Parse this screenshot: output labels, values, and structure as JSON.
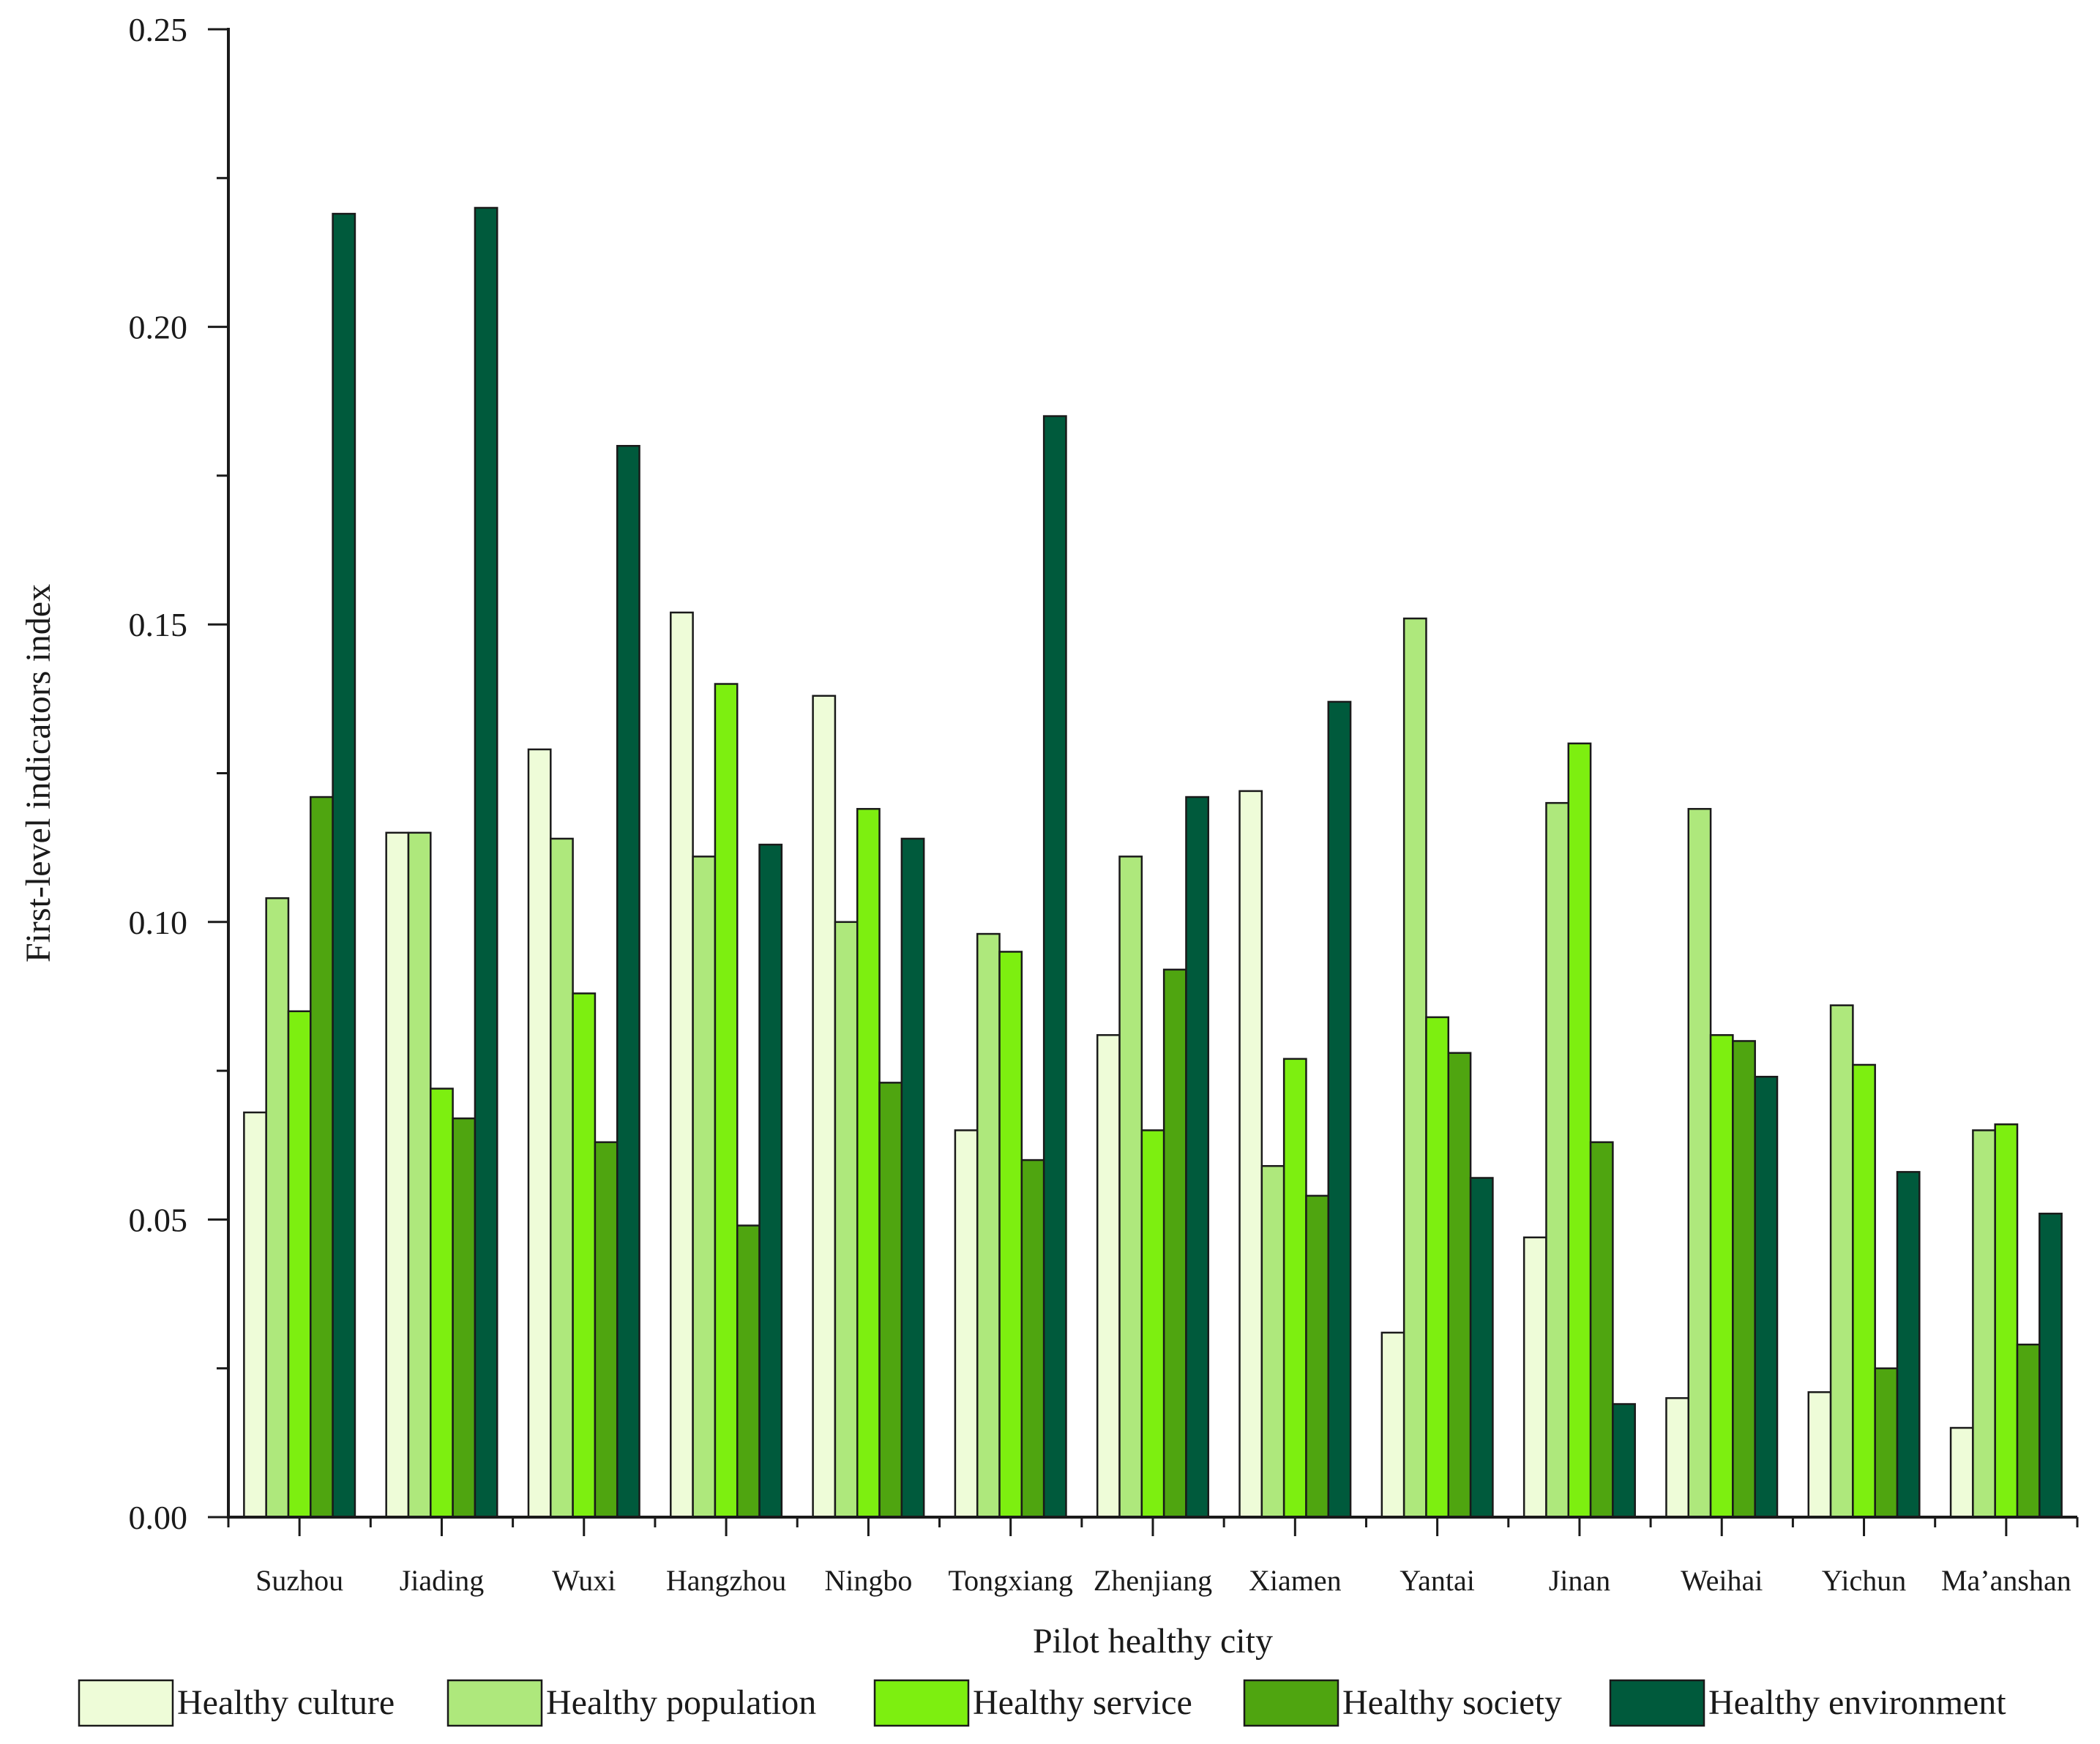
{
  "chart_data": {
    "type": "bar",
    "title": "",
    "xlabel": "Pilot healthy city",
    "ylabel": "First-level indicators index",
    "ylim": [
      0,
      0.25
    ],
    "yticks": [
      "0.00",
      "0.05",
      "0.10",
      "0.15",
      "0.20",
      "0.25"
    ],
    "ytick_values": [
      0,
      0.05,
      0.1,
      0.15,
      0.2,
      0.25
    ],
    "legend_position": "bottom",
    "categories": [
      "Suzhou",
      "Jiading",
      "Wuxi",
      "Hangzhou",
      "Ningbo",
      "Tongxiang",
      "Zhenjiang",
      "Xiamen",
      "Yantai",
      "Jinan",
      "Weihai",
      "Yichun",
      "Ma’anshan"
    ],
    "series": [
      {
        "name": "Healthy culture",
        "color": "#eefcd8",
        "values": [
          0.068,
          0.115,
          0.129,
          0.152,
          0.138,
          0.065,
          0.081,
          0.122,
          0.031,
          0.047,
          0.02,
          0.021,
          0.015
        ]
      },
      {
        "name": "Healthy population",
        "color": "#aee87c",
        "values": [
          0.104,
          0.115,
          0.114,
          0.111,
          0.1,
          0.098,
          0.111,
          0.059,
          0.151,
          0.12,
          0.119,
          0.086,
          0.065
        ]
      },
      {
        "name": "Healthy service",
        "color": "#7def10",
        "values": [
          0.085,
          0.072,
          0.088,
          0.14,
          0.119,
          0.095,
          0.065,
          0.077,
          0.084,
          0.13,
          0.081,
          0.076,
          0.066
        ]
      },
      {
        "name": "Healthy society",
        "color": "#4fa510",
        "values": [
          0.121,
          0.067,
          0.063,
          0.049,
          0.073,
          0.06,
          0.092,
          0.054,
          0.078,
          0.063,
          0.08,
          0.025,
          0.029
        ]
      },
      {
        "name": "Healthy environment",
        "color": "#005a3c",
        "values": [
          0.219,
          0.22,
          0.18,
          0.113,
          0.114,
          0.185,
          0.121,
          0.137,
          0.057,
          0.019,
          0.074,
          0.058,
          0.051
        ]
      }
    ]
  }
}
